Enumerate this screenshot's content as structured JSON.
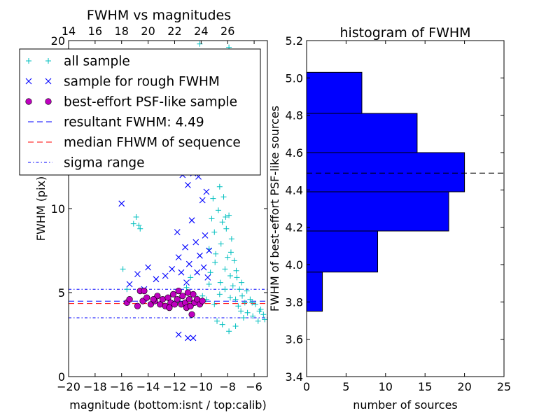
{
  "chart_data": [
    {
      "type": "scatter",
      "title": "FWHM vs magnitudes",
      "xlabel": "magnitude (bottom:isnt / top:calib)",
      "ylabel": "FWHM (pix)",
      "xlim": [
        -20,
        -5
      ],
      "ylim": [
        0,
        20
      ],
      "x_ticks": [
        -20,
        -18,
        -16,
        -14,
        -12,
        -10,
        -8,
        -6
      ],
      "x_tick_labels": [
        "−20",
        "−18",
        "−16",
        "−14",
        "−12",
        "−10",
        "−8",
        "−6"
      ],
      "y_ticks": [
        0,
        5,
        10,
        20
      ],
      "y_tick_labels": [
        "0",
        "5",
        "10",
        "20"
      ],
      "top_x_ticks": [
        14,
        16,
        18,
        20,
        22,
        24,
        26
      ],
      "top_x_tick_labels": [
        "14",
        "16",
        "18",
        "20",
        "22",
        "24",
        "26"
      ],
      "top_axis_offset": 34,
      "grid": false,
      "legend_position": "upper-left",
      "series": [
        {
          "name": "all sample",
          "marker": "plus",
          "color": "#00bfbf",
          "points": [
            [
              -15.9,
              6.4
            ],
            [
              -15.6,
              5.2
            ],
            [
              -15.1,
              9.1
            ],
            [
              -14.9,
              9.5
            ],
            [
              -14.7,
              9.0
            ],
            [
              -14.6,
              8.8
            ],
            [
              -11.6,
              4.4
            ],
            [
              -11.1,
              5.3
            ],
            [
              -10.8,
              5.9
            ],
            [
              -10.3,
              4.7
            ],
            [
              -9.9,
              4.8
            ],
            [
              -9.6,
              4.6
            ],
            [
              -9.4,
              7.6
            ],
            [
              -9.2,
              9.4
            ],
            [
              -9.1,
              10.6
            ],
            [
              -9.0,
              8.6
            ],
            [
              -8.9,
              7.3
            ],
            [
              -8.8,
              12.2
            ],
            [
              -8.7,
              9.9
            ],
            [
              -8.6,
              11.3
            ],
            [
              -8.5,
              7.9
            ],
            [
              -8.4,
              9.2
            ],
            [
              -8.3,
              10.7
            ],
            [
              -8.2,
              6.4
            ],
            [
              -8.1,
              8.8
            ],
            [
              -8.0,
              7.1
            ],
            [
              -7.9,
              9.6
            ],
            [
              -7.8,
              6.0
            ],
            [
              -7.7,
              8.2
            ],
            [
              -7.6,
              5.4
            ],
            [
              -7.5,
              6.9
            ],
            [
              -7.4,
              4.6
            ],
            [
              -7.3,
              5.9
            ],
            [
              -7.2,
              4.2
            ],
            [
              -7.1,
              5.2
            ],
            [
              -7.0,
              3.9
            ],
            [
              -6.9,
              4.8
            ],
            [
              -6.8,
              3.5
            ],
            [
              -6.7,
              4.4
            ],
            [
              -6.5,
              3.8
            ],
            [
              -6.3,
              4.6
            ],
            [
              -6.1,
              3.6
            ],
            [
              -5.9,
              4.3
            ],
            [
              -5.7,
              3.3
            ],
            [
              -5.5,
              4.0
            ],
            [
              -5.3,
              3.7
            ],
            [
              -8.7,
              14.8
            ],
            [
              -8.5,
              16.1
            ],
            [
              -8.3,
              17.6
            ],
            [
              -8.1,
              19.0
            ],
            [
              -7.9,
              19.6
            ],
            [
              -9.1,
              12.8
            ],
            [
              -10.1,
              19.8
            ],
            [
              -9.6,
              13.6
            ],
            [
              -8.8,
              3.3
            ],
            [
              -8.4,
              3.1
            ],
            [
              -7.9,
              2.7
            ],
            [
              -7.4,
              3.0
            ],
            [
              -9.0,
              4.3
            ],
            [
              -8.6,
              4.9
            ],
            [
              -8.2,
              5.2
            ],
            [
              -7.8,
              4.7
            ],
            [
              -9.4,
              5.5
            ],
            [
              -9.3,
              6.2
            ],
            [
              -8.95,
              6.8
            ],
            [
              -8.55,
              5.6
            ],
            [
              -8.15,
              9.5
            ],
            [
              -7.75,
              7.4
            ],
            [
              -7.35,
              6.3
            ],
            [
              -6.95,
              5.6
            ],
            [
              -6.55,
              5.1
            ],
            [
              -6.15,
              4.4
            ],
            [
              -5.6,
              3.9
            ],
            [
              -5.2,
              3.4
            ]
          ]
        },
        {
          "name": "sample for rough FWHM",
          "marker": "x",
          "color": "#0000ff",
          "points": [
            [
              -16.0,
              10.3
            ],
            [
              -15.4,
              5.5
            ],
            [
              -14.8,
              6.1
            ],
            [
              -14.3,
              5.2
            ],
            [
              -14.0,
              6.5
            ],
            [
              -13.4,
              5.8
            ],
            [
              -12.7,
              6.0
            ],
            [
              -12.2,
              6.4
            ],
            [
              -11.8,
              8.6
            ],
            [
              -11.7,
              7.1
            ],
            [
              -11.5,
              6.2
            ],
            [
              -11.4,
              12.0
            ],
            [
              -11.2,
              7.7
            ],
            [
              -11.1,
              5.6
            ],
            [
              -11.0,
              11.4
            ],
            [
              -10.9,
              6.7
            ],
            [
              -10.7,
              9.3
            ],
            [
              -10.6,
              12.1
            ],
            [
              -10.4,
              8.0
            ],
            [
              -10.3,
              6.2
            ],
            [
              -10.2,
              11.9
            ],
            [
              -10.1,
              7.2
            ],
            [
              -9.9,
              10.5
            ],
            [
              -9.8,
              6.5
            ],
            [
              -9.7,
              8.4
            ],
            [
              -9.6,
              11.0
            ],
            [
              -9.5,
              5.9
            ],
            [
              -9.4,
              7.5
            ],
            [
              -11.7,
              2.5
            ],
            [
              -11.0,
              2.3
            ],
            [
              -10.6,
              2.3
            ]
          ]
        },
        {
          "name": "best-effort PSF-like sample",
          "marker": "circle",
          "color": "#bf00bf",
          "points": [
            [
              -15.6,
              4.4
            ],
            [
              -15.4,
              4.6
            ],
            [
              -14.8,
              4.2
            ],
            [
              -14.6,
              5.1
            ],
            [
              -14.4,
              4.5
            ],
            [
              -14.3,
              5.1
            ],
            [
              -14.1,
              4.7
            ],
            [
              -13.8,
              4.3
            ],
            [
              -13.5,
              4.5
            ],
            [
              -13.3,
              4.8
            ],
            [
              -13.1,
              4.3
            ],
            [
              -12.9,
              4.6
            ],
            [
              -12.7,
              4.2
            ],
            [
              -12.5,
              4.7
            ],
            [
              -12.3,
              4.4
            ],
            [
              -12.1,
              4.9
            ],
            [
              -12.0,
              4.3
            ],
            [
              -11.8,
              4.6
            ],
            [
              -11.7,
              5.1
            ],
            [
              -11.5,
              4.3
            ],
            [
              -11.4,
              4.8
            ],
            [
              -11.2,
              4.4
            ],
            [
              -11.1,
              4.1
            ],
            [
              -10.9,
              4.6
            ],
            [
              -10.8,
              4.2
            ],
            [
              -10.6,
              4.9
            ],
            [
              -10.5,
              4.4
            ],
            [
              -10.3,
              4.6
            ],
            [
              -10.1,
              4.3
            ],
            [
              -9.9,
              4.5
            ],
            [
              -10.7,
              3.7
            ],
            [
              -11.0,
              5.0
            ],
            [
              -12.4,
              4.1
            ],
            [
              -13.6,
              4.6
            ]
          ]
        }
      ],
      "hlines": [
        {
          "name": "resultant FWHM: 4.49",
          "y": 4.49,
          "style": "dashed",
          "color": "#0000ff"
        },
        {
          "name": "median FHWM of sequence",
          "y": 4.35,
          "style": "dashed",
          "color": "#ff0000"
        },
        {
          "name": "sigma range",
          "y": 5.2,
          "style": "dashdot",
          "color": "#0000ff"
        },
        {
          "name": "sigma range",
          "y": 3.5,
          "style": "dashdot",
          "color": "#0000ff"
        }
      ],
      "legend": [
        {
          "label": "all sample",
          "marker": "plus",
          "color": "#00bfbf"
        },
        {
          "label": "sample for rough FWHM",
          "marker": "x",
          "color": "#0000ff"
        },
        {
          "label": "best-effort PSF-like sample",
          "marker": "circle",
          "color": "#bf00bf"
        },
        {
          "label": "resultant FWHM: 4.49",
          "marker": "dashed",
          "color": "#0000ff"
        },
        {
          "label": "median FHWM of sequence",
          "marker": "dashed",
          "color": "#ff0000"
        },
        {
          "label": "sigma range",
          "marker": "dashdot",
          "color": "#0000ff"
        }
      ]
    },
    {
      "type": "bar",
      "orientation": "horizontal",
      "title": "histogram of FWHM",
      "xlabel": "number of sources",
      "ylabel": "FWHM of best-effort PSF-like sources",
      "xlim": [
        0,
        25
      ],
      "ylim": [
        3.4,
        5.2
      ],
      "x_ticks": [
        0,
        5,
        10,
        15,
        20,
        25
      ],
      "x_tick_labels": [
        "0",
        "5",
        "10",
        "15",
        "20",
        "25"
      ],
      "y_ticks": [
        3.4,
        3.6,
        3.8,
        4.0,
        4.2,
        4.4,
        4.6,
        4.8,
        5.0,
        5.2
      ],
      "y_tick_labels": [
        "3.4",
        "3.6",
        "3.8",
        "4.0",
        "4.2",
        "4.4",
        "4.6",
        "4.8",
        "5.0",
        "5.2"
      ],
      "bin_edges": [
        3.75,
        3.96,
        4.18,
        4.39,
        4.6,
        4.81,
        5.03
      ],
      "counts": [
        2,
        9,
        18,
        20,
        14,
        7
      ],
      "bar_color": "#0000ff",
      "hline": {
        "y": 4.49,
        "style": "dashed",
        "color": "#000000"
      },
      "grid": false
    }
  ]
}
